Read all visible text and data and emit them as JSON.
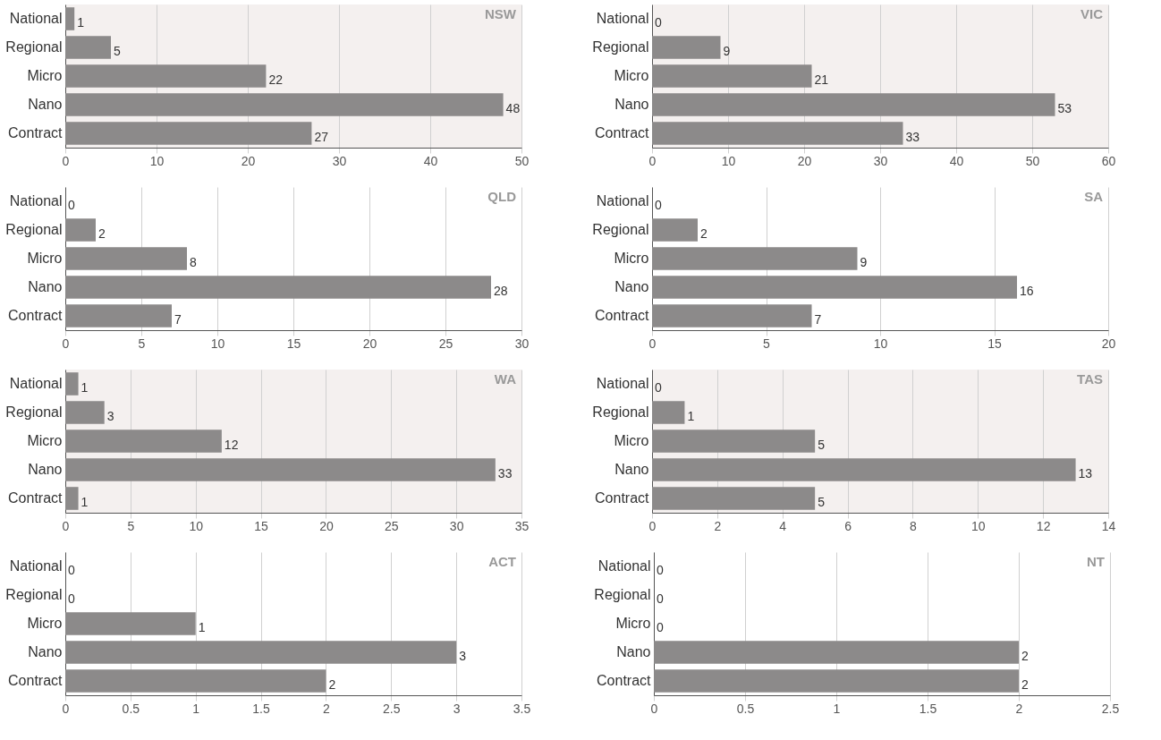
{
  "chart_data": [
    {
      "type": "bar",
      "orientation": "horizontal",
      "title": "NSW",
      "categories": [
        "National",
        "Regional",
        "Micro",
        "Nano",
        "Contract"
      ],
      "values": [
        1,
        5,
        22,
        48,
        27
      ],
      "color": "#8c8a8a",
      "xlim": [
        0,
        50
      ],
      "xticks": [
        0,
        10,
        20,
        30,
        40,
        50
      ],
      "grid": "x",
      "data_labels": true
    },
    {
      "type": "bar",
      "orientation": "horizontal",
      "title": "VIC",
      "categories": [
        "National",
        "Regional",
        "Micro",
        "Nano",
        "Contract"
      ],
      "values": [
        0,
        9,
        21,
        53,
        33
      ],
      "color": "#8c8a8a",
      "xlim": [
        0,
        60
      ],
      "xticks": [
        0,
        10,
        20,
        30,
        40,
        50,
        60
      ],
      "grid": "x",
      "data_labels": true
    },
    {
      "type": "bar",
      "orientation": "horizontal",
      "title": "QLD",
      "categories": [
        "National",
        "Regional",
        "Micro",
        "Nano",
        "Contract"
      ],
      "values": [
        0,
        2,
        8,
        28,
        7
      ],
      "color": "#8c8a8a",
      "xlim": [
        0,
        30
      ],
      "xticks": [
        0,
        5,
        10,
        15,
        20,
        25,
        30
      ],
      "grid": "x",
      "data_labels": true
    },
    {
      "type": "bar",
      "orientation": "horizontal",
      "title": "SA",
      "categories": [
        "National",
        "Regional",
        "Micro",
        "Nano",
        "Contract"
      ],
      "values": [
        0,
        2,
        9,
        16,
        7
      ],
      "color": "#8c8a8a",
      "xlim": [
        0,
        20
      ],
      "xticks": [
        0,
        5,
        10,
        15,
        20
      ],
      "grid": "x",
      "data_labels": true
    },
    {
      "type": "bar",
      "orientation": "horizontal",
      "title": "WA",
      "categories": [
        "National",
        "Regional",
        "Micro",
        "Nano",
        "Contract"
      ],
      "values": [
        1,
        3,
        12,
        33,
        1
      ],
      "color": "#8c8a8a",
      "xlim": [
        0,
        35
      ],
      "xticks": [
        0,
        5,
        10,
        15,
        20,
        25,
        30,
        35
      ],
      "grid": "x",
      "data_labels": true
    },
    {
      "type": "bar",
      "orientation": "horizontal",
      "title": "TAS",
      "categories": [
        "National",
        "Regional",
        "Micro",
        "Nano",
        "Contract"
      ],
      "values": [
        0,
        1,
        5,
        13,
        5
      ],
      "color": "#8c8a8a",
      "xlim": [
        0,
        14
      ],
      "xticks": [
        0,
        2,
        4,
        6,
        8,
        10,
        12,
        14
      ],
      "grid": "x",
      "data_labels": true
    },
    {
      "type": "bar",
      "orientation": "horizontal",
      "title": "ACT",
      "categories": [
        "National",
        "Regional",
        "Micro",
        "Nano",
        "Contract"
      ],
      "values": [
        0,
        0,
        1,
        3,
        2
      ],
      "color": "#8c8a8a",
      "xlim": [
        0,
        3.5
      ],
      "xticks": [
        0,
        0.5,
        1,
        1.5,
        2,
        2.5,
        3,
        3.5
      ],
      "grid": "x",
      "data_labels": true
    },
    {
      "type": "bar",
      "orientation": "horizontal",
      "title": "NT",
      "categories": [
        "National",
        "Regional",
        "Micro",
        "Nano",
        "Contract"
      ],
      "values": [
        0,
        0,
        0,
        2,
        2
      ],
      "color": "#8c8a8a",
      "xlim": [
        0,
        2.5
      ],
      "xticks": [
        0,
        0.5,
        1,
        1.5,
        2,
        2.5
      ],
      "grid": "x",
      "data_labels": true
    }
  ]
}
